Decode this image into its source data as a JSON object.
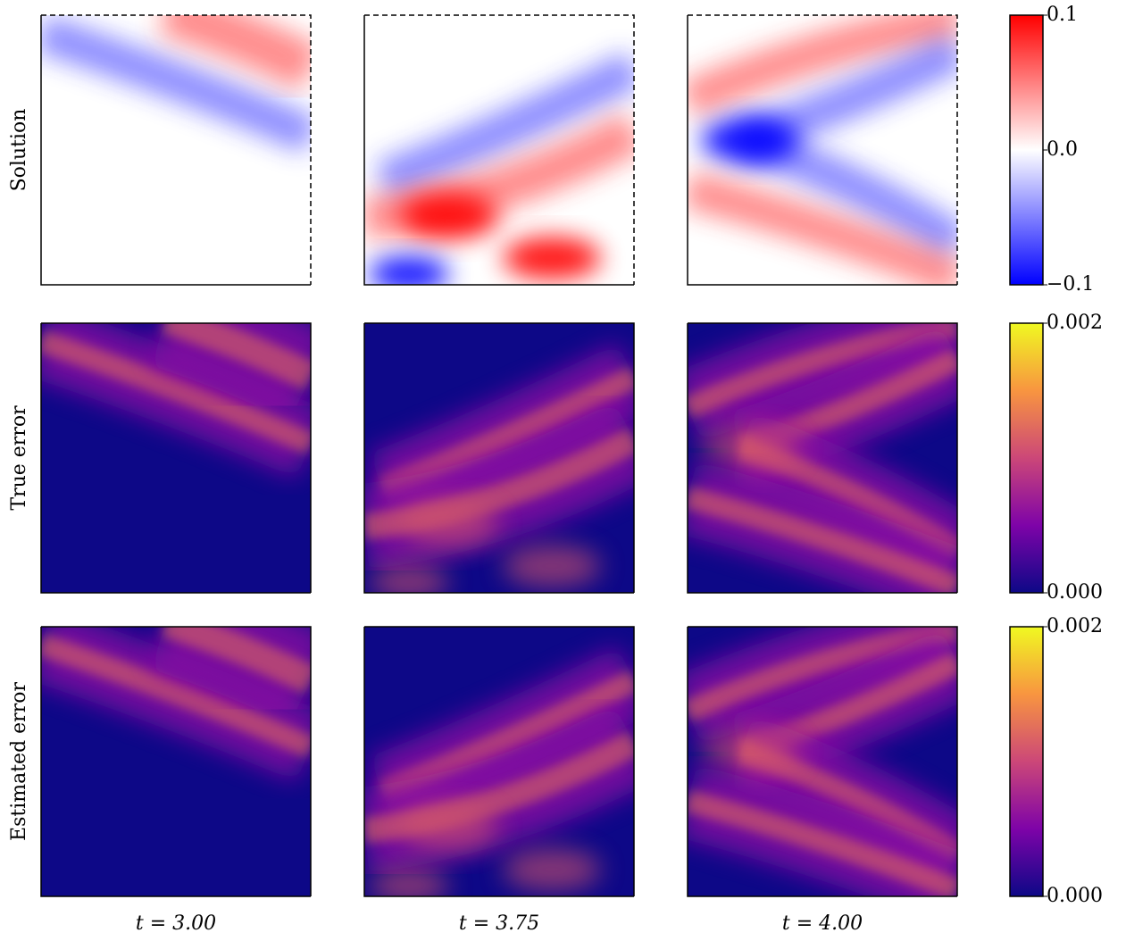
{
  "rows": [
    {
      "label": "Solution",
      "colorbar": {
        "lim": [
          -0.1,
          0.1
        ],
        "ticks": [
          {
            "value": 0.1,
            "label": "0.1"
          },
          {
            "value": 0,
            "label": "0.0"
          },
          {
            "value": -0.1,
            "label": "−0.1"
          }
        ],
        "colors": [
          "#0000ff",
          "#ffffff",
          "#ff0000"
        ]
      }
    },
    {
      "label": "True error",
      "colorbar": {
        "lim": [
          0,
          0.002
        ],
        "ticks": [
          0.002,
          {
            "value": 0,
            "label": "0.000"
          }
        ],
        "colors": [
          "#0d0887",
          "#7e03a8",
          "#cc4778",
          "#f89540",
          "#f0f921"
        ]
      }
    },
    {
      "label": "Estimated error",
      "colorbar": {
        "lim": [
          0,
          0.002
        ],
        "ticks": [
          0.002,
          {
            "value": 0,
            "label": "0.000"
          }
        ],
        "colors": [
          "#0d0887",
          "#7e03a8",
          "#cc4778",
          "#f89540",
          "#f0f921"
        ]
      }
    }
  ],
  "columns": [
    {
      "label": "t = 3.00"
    },
    {
      "label": "t = 3.75"
    },
    {
      "label": "t = 4.00"
    }
  ]
}
